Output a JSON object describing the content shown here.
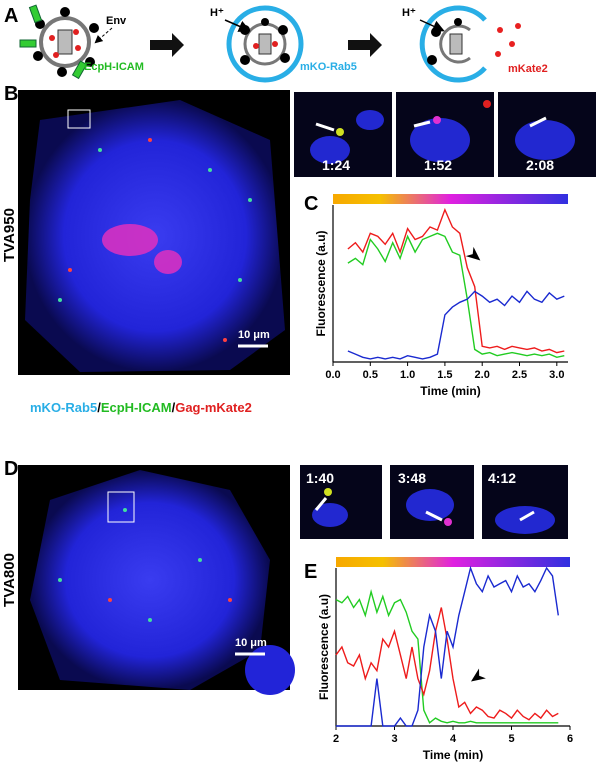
{
  "figure": {
    "panels": [
      "A",
      "B",
      "C",
      "D",
      "E"
    ],
    "schematic": {
      "env": "Env",
      "proton": "H⁺",
      "ecph": "EcpH-ICAM",
      "rab5": "mKO-Rab5",
      "mkate": "mKate2"
    },
    "b": {
      "cell_label": "TVA950",
      "scale": "10 μm",
      "times": [
        "1:24",
        "1:52",
        "2:08"
      ]
    },
    "legend": {
      "parts": [
        "mKO-Rab5",
        "/",
        "EcpH-ICAM",
        "/",
        "Gag-mKate2"
      ]
    },
    "d": {
      "cell_label": "TVA800",
      "scale": "10 μm",
      "times": [
        "1:40",
        "3:48",
        "4:12"
      ]
    }
  },
  "chart_data": [
    {
      "type": "line",
      "x_label": "Time (min)",
      "y_label": "Fluorescence (a.u)",
      "x": [
        0.2,
        0.3,
        0.4,
        0.5,
        0.6,
        0.7,
        0.8,
        0.9,
        1.0,
        1.1,
        1.2,
        1.3,
        1.4,
        1.5,
        1.6,
        1.7,
        1.8,
        1.9,
        2.0,
        2.1,
        2.2,
        2.3,
        2.4,
        2.5,
        2.6,
        2.7,
        2.8,
        2.9,
        3.0,
        3.1
      ],
      "xlim": [
        0,
        3.15
      ],
      "ylim": [
        0,
        1
      ],
      "xticks": [
        {
          "value": 0,
          "label": "0.0"
        },
        {
          "value": 0.5,
          "label": "0.5"
        },
        {
          "value": 1,
          "label": "1.0"
        },
        {
          "value": 1.5,
          "label": "1.5"
        },
        {
          "value": 2,
          "label": "2.0"
        },
        {
          "value": 2.5,
          "label": "2.5"
        },
        {
          "value": 3,
          "label": "3.0"
        }
      ],
      "series": [
        {
          "color": "#ee1c1c",
          "values": [
            0.72,
            0.76,
            0.7,
            0.82,
            0.8,
            0.75,
            0.82,
            0.7,
            0.85,
            0.78,
            0.8,
            0.86,
            0.84,
            0.97,
            0.86,
            0.82,
            0.6,
            0.48,
            0.1,
            0.09,
            0.1,
            0.08,
            0.1,
            0.09,
            0.08,
            0.09,
            0.07,
            0.08,
            0.06,
            0.07
          ]
        },
        {
          "color": "#22cc22",
          "values": [
            0.63,
            0.66,
            0.62,
            0.78,
            0.72,
            0.64,
            0.76,
            0.66,
            0.8,
            0.7,
            0.78,
            0.8,
            0.82,
            0.8,
            0.7,
            0.68,
            0.4,
            0.08,
            0.05,
            0.06,
            0.04,
            0.05,
            0.06,
            0.05,
            0.04,
            0.05,
            0.04,
            0.05,
            0.03,
            0.04
          ]
        },
        {
          "color": "#1a2ad0",
          "values": [
            0.07,
            0.05,
            0.03,
            0.02,
            0.03,
            0.02,
            0.03,
            0.02,
            0.04,
            0.03,
            0.02,
            0.03,
            0.05,
            0.3,
            0.35,
            0.38,
            0.4,
            0.45,
            0.42,
            0.38,
            0.4,
            0.36,
            0.42,
            0.38,
            0.45,
            0.4,
            0.38,
            0.44,
            0.4,
            0.42
          ]
        }
      ]
    },
    {
      "type": "line",
      "x_label": "Time (min)",
      "y_label": "Fluorescence (a.u)",
      "x": [
        2.0,
        2.1,
        2.2,
        2.3,
        2.4,
        2.5,
        2.6,
        2.7,
        2.8,
        2.9,
        3.0,
        3.1,
        3.2,
        3.3,
        3.4,
        3.5,
        3.6,
        3.7,
        3.8,
        3.9,
        4.0,
        4.1,
        4.2,
        4.3,
        4.4,
        4.5,
        4.6,
        4.7,
        4.8,
        4.9,
        5.0,
        5.1,
        5.2,
        5.3,
        5.4,
        5.5,
        5.6,
        5.7,
        5.8
      ],
      "xlim": [
        2,
        6
      ],
      "ylim": [
        0,
        1
      ],
      "xticks": [
        2,
        3,
        4,
        5,
        6
      ],
      "series": [
        {
          "color": "#22cc22",
          "values": [
            0.8,
            0.78,
            0.82,
            0.75,
            0.8,
            0.7,
            0.85,
            0.72,
            0.82,
            0.7,
            0.78,
            0.8,
            0.72,
            0.6,
            0.55,
            0.1,
            0.02,
            0.05,
            0.03,
            0.02,
            0.03,
            0.02,
            0.02,
            0.03,
            0.02,
            0.02,
            0.02,
            0.02,
            0.02,
            0.02,
            0.02,
            0.02,
            0.02,
            0.02,
            0.02,
            0.02,
            0.02,
            0.02,
            0.02
          ]
        },
        {
          "color": "#ee1c1c",
          "values": [
            0.45,
            0.5,
            0.4,
            0.38,
            0.45,
            0.3,
            0.4,
            0.35,
            0.55,
            0.5,
            0.6,
            0.45,
            0.3,
            0.5,
            0.3,
            0.2,
            0.35,
            0.6,
            0.75,
            0.55,
            0.3,
            0.12,
            0.15,
            0.08,
            0.12,
            0.1,
            0.06,
            0.05,
            0.1,
            0.08,
            0.05,
            0.1,
            0.06,
            0.04,
            0.08,
            0.05,
            0.1,
            0.06,
            0.08
          ]
        },
        {
          "color": "#1a2ad0",
          "values": [
            0,
            0,
            0,
            0,
            0,
            0,
            0,
            0.3,
            0,
            0,
            0,
            0.05,
            0,
            0,
            0.1,
            0.5,
            0.7,
            0.6,
            0.3,
            0.6,
            0.5,
            0.7,
            0.85,
            1.0,
            0.9,
            0.85,
            0.95,
            0.88,
            0.9,
            0.92,
            0.85,
            0.95,
            0.88,
            0.9,
            0.85,
            0.92,
            1.0,
            0.95,
            0.7
          ]
        }
      ]
    }
  ]
}
